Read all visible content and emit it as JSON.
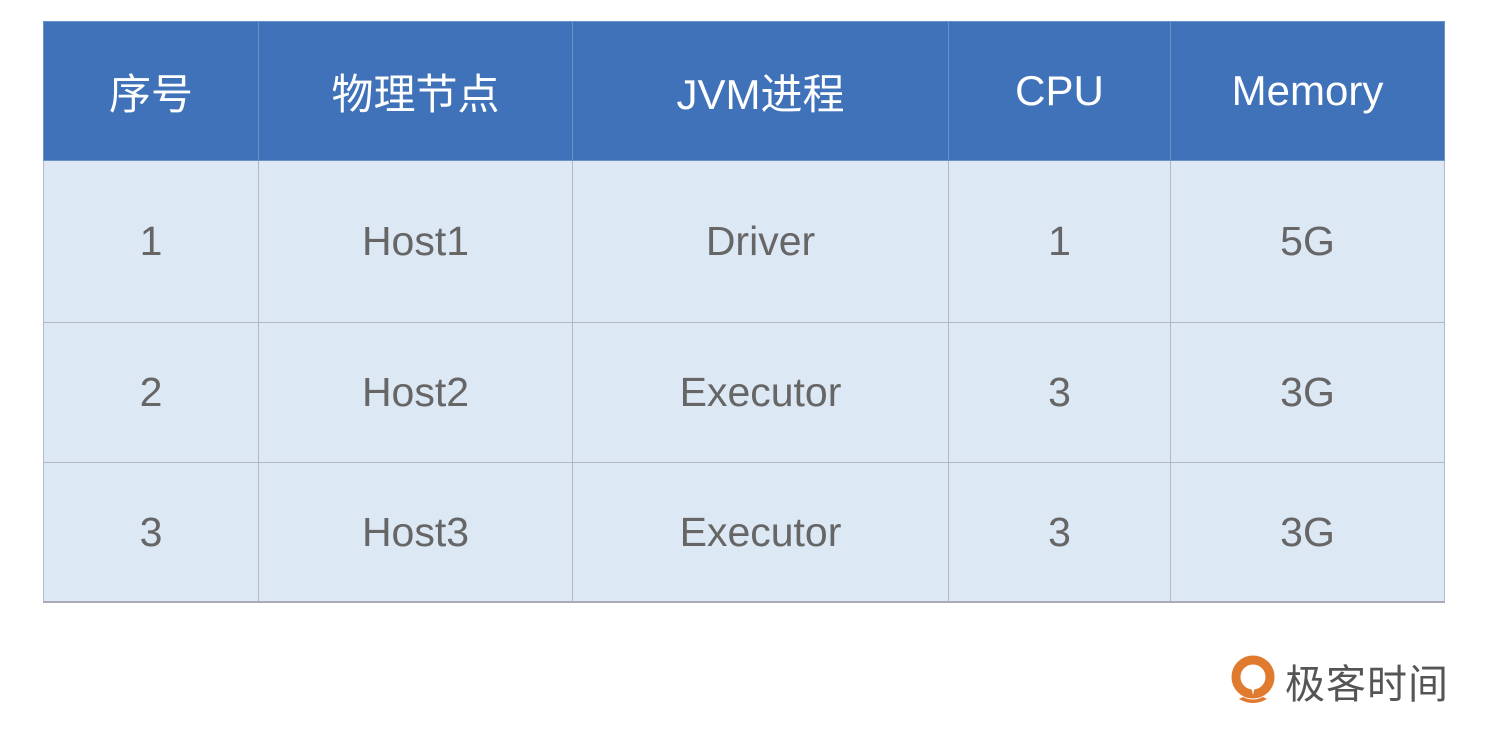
{
  "table": {
    "headers": [
      "序号",
      "物理节点",
      "JVM进程",
      "CPU",
      "Memory"
    ],
    "rows": [
      [
        "1",
        "Host1",
        "Driver",
        "1",
        "5G"
      ],
      [
        "2",
        "Host2",
        "Executor",
        "3",
        "3G"
      ],
      [
        "3",
        "Host3",
        "Executor",
        "3",
        "3G"
      ]
    ]
  },
  "colors": {
    "header_bg": "#3f72b9",
    "row_bg": "#dde8f5",
    "logo_orange": "#e07a2e"
  },
  "logo": {
    "text": "极客时间"
  }
}
